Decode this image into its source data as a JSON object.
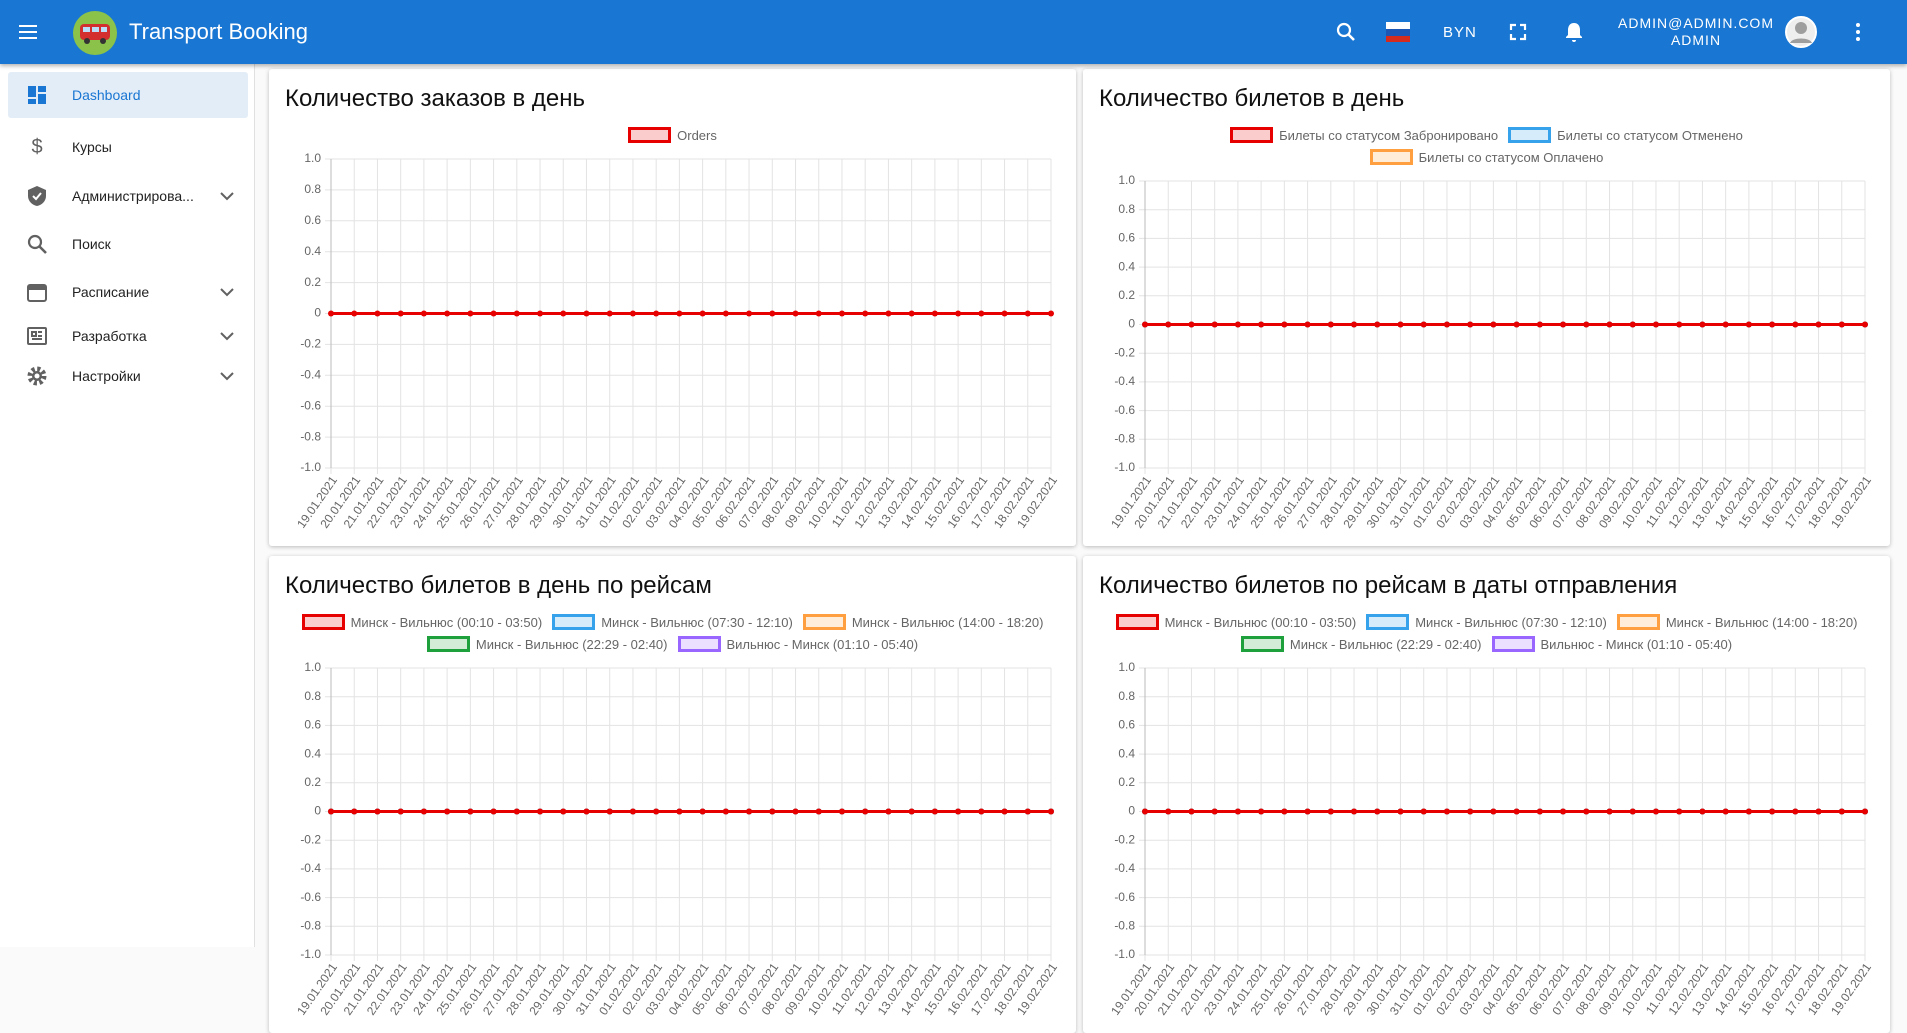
{
  "header": {
    "title": "Transport Booking",
    "currency": "BYN",
    "user_email": "ADMIN@ADMIN.COM",
    "user_role": "ADMIN"
  },
  "sidebar": {
    "items": [
      "Dashboard",
      "Курсы",
      "Администрирова...",
      "Поиск",
      "Расписание",
      "Разработка",
      "Настройки"
    ]
  },
  "chart_data": [
    {
      "type": "line",
      "title": "Количество заказов в день",
      "categories": [
        "19.01.2021",
        "20.01.2021",
        "21.01.2021",
        "22.01.2021",
        "23.01.2021",
        "24.01.2021",
        "25.01.2021",
        "26.01.2021",
        "27.01.2021",
        "28.01.2021",
        "29.01.2021",
        "30.01.2021",
        "31.01.2021",
        "01.02.2021",
        "02.02.2021",
        "03.02.2021",
        "04.02.2021",
        "05.02.2021",
        "06.02.2021",
        "07.02.2021",
        "08.02.2021",
        "09.02.2021",
        "10.02.2021",
        "11.02.2021",
        "12.02.2021",
        "13.02.2021",
        "14.02.2021",
        "15.02.2021",
        "16.02.2021",
        "17.02.2021",
        "18.02.2021",
        "19.02.2021"
      ],
      "series": [
        {
          "name": "Orders",
          "color": "#e60000",
          "values": [
            0,
            0,
            0,
            0,
            0,
            0,
            0,
            0,
            0,
            0,
            0,
            0,
            0,
            0,
            0,
            0,
            0,
            0,
            0,
            0,
            0,
            0,
            0,
            0,
            0,
            0,
            0,
            0,
            0,
            0,
            0,
            0
          ]
        }
      ],
      "ylim": [
        -1,
        1
      ],
      "yticks": [
        {
          "value": -1,
          "label": "-1.0"
        },
        -0.8,
        -0.6,
        -0.4,
        -0.2,
        0,
        0.2,
        0.4,
        0.6,
        0.8,
        {
          "value": 1,
          "label": "1.0"
        }
      ],
      "grid": true
    },
    {
      "type": "line",
      "title": "Количество билетов в день",
      "categories": [
        "19.01.2021",
        "20.01.2021",
        "21.01.2021",
        "22.01.2021",
        "23.01.2021",
        "24.01.2021",
        "25.01.2021",
        "26.01.2021",
        "27.01.2021",
        "28.01.2021",
        "29.01.2021",
        "30.01.2021",
        "31.01.2021",
        "01.02.2021",
        "02.02.2021",
        "03.02.2021",
        "04.02.2021",
        "05.02.2021",
        "06.02.2021",
        "07.02.2021",
        "08.02.2021",
        "09.02.2021",
        "10.02.2021",
        "11.02.2021",
        "12.02.2021",
        "13.02.2021",
        "14.02.2021",
        "15.02.2021",
        "16.02.2021",
        "17.02.2021",
        "18.02.2021",
        "19.02.2021"
      ],
      "series": [
        {
          "name": "Билеты со статусом Забронировано",
          "color": "#e60000",
          "values": [
            0,
            0,
            0,
            0,
            0,
            0,
            0,
            0,
            0,
            0,
            0,
            0,
            0,
            0,
            0,
            0,
            0,
            0,
            0,
            0,
            0,
            0,
            0,
            0,
            0,
            0,
            0,
            0,
            0,
            0,
            0,
            0
          ]
        },
        {
          "name": "Билеты со статусом Отменено",
          "color": "#36a2eb",
          "values": [
            0,
            0,
            0,
            0,
            0,
            0,
            0,
            0,
            0,
            0,
            0,
            0,
            0,
            0,
            0,
            0,
            0,
            0,
            0,
            0,
            0,
            0,
            0,
            0,
            0,
            0,
            0,
            0,
            0,
            0,
            0,
            0
          ]
        },
        {
          "name": "Билеты со статусом Оплачено",
          "color": "#ff9f40",
          "values": [
            0,
            0,
            0,
            0,
            0,
            0,
            0,
            0,
            0,
            0,
            0,
            0,
            0,
            0,
            0,
            0,
            0,
            0,
            0,
            0,
            0,
            0,
            0,
            0,
            0,
            0,
            0,
            0,
            0,
            0,
            0,
            0
          ]
        }
      ],
      "ylim": [
        -1,
        1
      ],
      "yticks": [
        {
          "value": -1,
          "label": "-1.0"
        },
        -0.8,
        -0.6,
        -0.4,
        -0.2,
        0,
        0.2,
        0.4,
        0.6,
        0.8,
        {
          "value": 1,
          "label": "1.0"
        }
      ],
      "grid": true
    },
    {
      "type": "line",
      "title": "Количество билетов в день по рейсам",
      "categories": [
        "19.01.2021",
        "20.01.2021",
        "21.01.2021",
        "22.01.2021",
        "23.01.2021",
        "24.01.2021",
        "25.01.2021",
        "26.01.2021",
        "27.01.2021",
        "28.01.2021",
        "29.01.2021",
        "30.01.2021",
        "31.01.2021",
        "01.02.2021",
        "02.02.2021",
        "03.02.2021",
        "04.02.2021",
        "05.02.2021",
        "06.02.2021",
        "07.02.2021",
        "08.02.2021",
        "09.02.2021",
        "10.02.2021",
        "11.02.2021",
        "12.02.2021",
        "13.02.2021",
        "14.02.2021",
        "15.02.2021",
        "16.02.2021",
        "17.02.2021",
        "18.02.2021",
        "19.02.2021"
      ],
      "series": [
        {
          "name": "Минск - Вильнюс (00:10 - 03:50)",
          "color": "#e60000",
          "values": [
            0,
            0,
            0,
            0,
            0,
            0,
            0,
            0,
            0,
            0,
            0,
            0,
            0,
            0,
            0,
            0,
            0,
            0,
            0,
            0,
            0,
            0,
            0,
            0,
            0,
            0,
            0,
            0,
            0,
            0,
            0,
            0
          ]
        },
        {
          "name": "Минск - Вильнюс (07:30 - 12:10)",
          "color": "#36a2eb",
          "values": [
            0,
            0,
            0,
            0,
            0,
            0,
            0,
            0,
            0,
            0,
            0,
            0,
            0,
            0,
            0,
            0,
            0,
            0,
            0,
            0,
            0,
            0,
            0,
            0,
            0,
            0,
            0,
            0,
            0,
            0,
            0,
            0
          ]
        },
        {
          "name": "Минск - Вильнюс (14:00 - 18:20)",
          "color": "#ff9f40",
          "values": [
            0,
            0,
            0,
            0,
            0,
            0,
            0,
            0,
            0,
            0,
            0,
            0,
            0,
            0,
            0,
            0,
            0,
            0,
            0,
            0,
            0,
            0,
            0,
            0,
            0,
            0,
            0,
            0,
            0,
            0,
            0,
            0
          ]
        },
        {
          "name": "Минск - Вильнюс (22:29 - 02:40)",
          "color": "#1ea03c",
          "values": [
            0,
            0,
            0,
            0,
            0,
            0,
            0,
            0,
            0,
            0,
            0,
            0,
            0,
            0,
            0,
            0,
            0,
            0,
            0,
            0,
            0,
            0,
            0,
            0,
            0,
            0,
            0,
            0,
            0,
            0,
            0,
            0
          ]
        },
        {
          "name": "Вильнюс - Минск (01:10 - 05:40)",
          "color": "#9966ff",
          "values": [
            0,
            0,
            0,
            0,
            0,
            0,
            0,
            0,
            0,
            0,
            0,
            0,
            0,
            0,
            0,
            0,
            0,
            0,
            0,
            0,
            0,
            0,
            0,
            0,
            0,
            0,
            0,
            0,
            0,
            0,
            0,
            0
          ]
        }
      ],
      "ylim": [
        -1,
        1
      ],
      "yticks": [
        {
          "value": -1,
          "label": "-1.0"
        },
        -0.8,
        -0.6,
        -0.4,
        -0.2,
        0,
        0.2,
        0.4,
        0.6,
        0.8,
        {
          "value": 1,
          "label": "1.0"
        }
      ],
      "grid": true
    },
    {
      "type": "line",
      "title": "Количество билетов по рейсам в даты отправления",
      "categories": [
        "19.01.2021",
        "20.01.2021",
        "21.01.2021",
        "22.01.2021",
        "23.01.2021",
        "24.01.2021",
        "25.01.2021",
        "26.01.2021",
        "27.01.2021",
        "28.01.2021",
        "29.01.2021",
        "30.01.2021",
        "31.01.2021",
        "01.02.2021",
        "02.02.2021",
        "03.02.2021",
        "04.02.2021",
        "05.02.2021",
        "06.02.2021",
        "07.02.2021",
        "08.02.2021",
        "09.02.2021",
        "10.02.2021",
        "11.02.2021",
        "12.02.2021",
        "13.02.2021",
        "14.02.2021",
        "15.02.2021",
        "16.02.2021",
        "17.02.2021",
        "18.02.2021",
        "19.02.2021"
      ],
      "series": [
        {
          "name": "Минск - Вильнюс (00:10 - 03:50)",
          "color": "#e60000",
          "values": [
            0,
            0,
            0,
            0,
            0,
            0,
            0,
            0,
            0,
            0,
            0,
            0,
            0,
            0,
            0,
            0,
            0,
            0,
            0,
            0,
            0,
            0,
            0,
            0,
            0,
            0,
            0,
            0,
            0,
            0,
            0,
            0
          ]
        },
        {
          "name": "Минск - Вильнюс (07:30 - 12:10)",
          "color": "#36a2eb",
          "values": [
            0,
            0,
            0,
            0,
            0,
            0,
            0,
            0,
            0,
            0,
            0,
            0,
            0,
            0,
            0,
            0,
            0,
            0,
            0,
            0,
            0,
            0,
            0,
            0,
            0,
            0,
            0,
            0,
            0,
            0,
            0,
            0
          ]
        },
        {
          "name": "Минск - Вильнюс (14:00 - 18:20)",
          "color": "#ff9f40",
          "values": [
            0,
            0,
            0,
            0,
            0,
            0,
            0,
            0,
            0,
            0,
            0,
            0,
            0,
            0,
            0,
            0,
            0,
            0,
            0,
            0,
            0,
            0,
            0,
            0,
            0,
            0,
            0,
            0,
            0,
            0,
            0,
            0
          ]
        },
        {
          "name": "Минск - Вильнюс (22:29 - 02:40)",
          "color": "#1ea03c",
          "values": [
            0,
            0,
            0,
            0,
            0,
            0,
            0,
            0,
            0,
            0,
            0,
            0,
            0,
            0,
            0,
            0,
            0,
            0,
            0,
            0,
            0,
            0,
            0,
            0,
            0,
            0,
            0,
            0,
            0,
            0,
            0,
            0
          ]
        },
        {
          "name": "Вильнюс - Минск (01:10 - 05:40)",
          "color": "#9966ff",
          "values": [
            0,
            0,
            0,
            0,
            0,
            0,
            0,
            0,
            0,
            0,
            0,
            0,
            0,
            0,
            0,
            0,
            0,
            0,
            0,
            0,
            0,
            0,
            0,
            0,
            0,
            0,
            0,
            0,
            0,
            0,
            0,
            0
          ]
        }
      ],
      "ylim": [
        -1,
        1
      ],
      "yticks": [
        {
          "value": -1,
          "label": "-1.0"
        },
        -0.8,
        -0.6,
        -0.4,
        -0.2,
        0,
        0.2,
        0.4,
        0.6,
        0.8,
        {
          "value": 1,
          "label": "1.0"
        }
      ],
      "grid": true
    }
  ]
}
